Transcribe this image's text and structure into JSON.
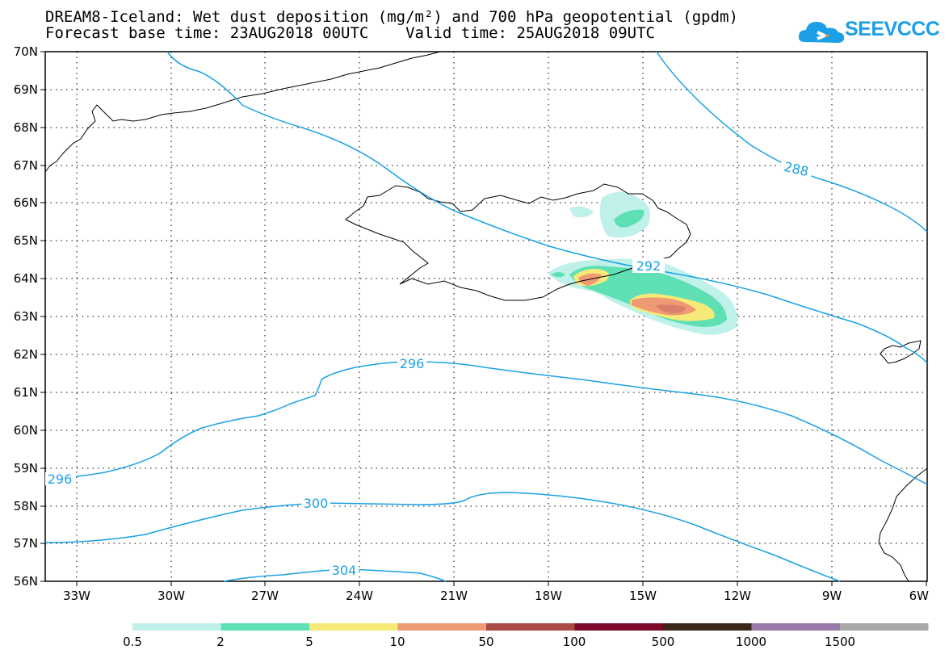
{
  "header": {
    "title_line1": "DREAM8-Iceland: Wet dust deposition (mg/m²) and 700 hPa geopotential (gpdm)",
    "title_line2": "Forecast base time: 23AUG2018 00UTC    Valid time: 25AUG2018 09UTC"
  },
  "logo": {
    "text": "SEEVCCC",
    "icon": "cloud-logo-icon",
    "color": "#1d9fe8"
  },
  "map": {
    "lat_labels": [
      "70N",
      "69N",
      "68N",
      "67N",
      "66N",
      "65N",
      "64N",
      "63N",
      "62N",
      "61N",
      "60N",
      "59N",
      "58N",
      "57N",
      "56N"
    ],
    "lon_labels": [
      "33W",
      "30W",
      "27W",
      "24W",
      "21W",
      "18W",
      "15W",
      "12W",
      "9W",
      "6W"
    ],
    "contour_labels": [
      "288",
      "292",
      "296",
      "296",
      "300",
      "304"
    ],
    "contour_color": "#1aa1e6"
  },
  "legend": {
    "labels": [
      "0.5",
      "2",
      "5",
      "10",
      "50",
      "100",
      "500",
      "1000",
      "1500"
    ],
    "colors": [
      "#bff0ea",
      "#5fe0b4",
      "#f6ea78",
      "#ee9a74",
      "#aa4a46",
      "#7d0a2a",
      "#3a2718",
      "#9a7aa8",
      "#a8a8a8"
    ]
  }
}
